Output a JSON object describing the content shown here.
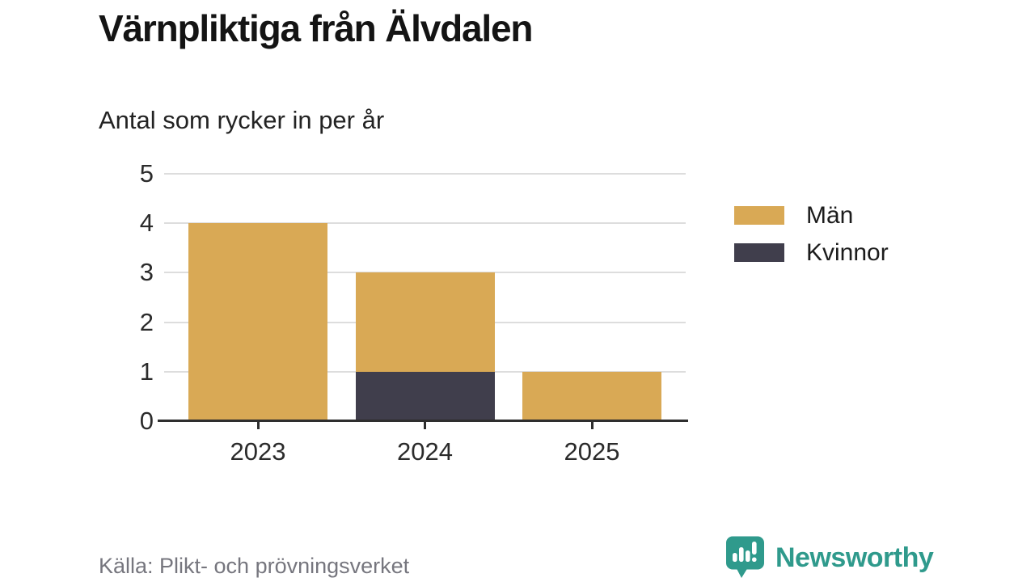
{
  "chart_data": {
    "type": "bar",
    "stacked": true,
    "title": "Värnpliktiga från Älvdalen",
    "subtitle": "Antal som rycker in per år",
    "categories": [
      "2023",
      "2024",
      "2025"
    ],
    "series": [
      {
        "name": "Män",
        "color": "#d9a955",
        "values": [
          4,
          2,
          1
        ]
      },
      {
        "name": "Kvinnor",
        "color": "#403e4c",
        "values": [
          0,
          1,
          0
        ]
      }
    ],
    "totals": [
      4,
      3,
      1
    ],
    "ylim": [
      0,
      5
    ],
    "yticks": [
      0,
      1,
      2,
      3,
      4,
      5
    ],
    "grid": true,
    "legend_position": "right",
    "colors": {
      "axis": "#2e2e2e",
      "gridline": "#dddddd",
      "tick_label": "#2b2b2b"
    }
  },
  "footer": {
    "source": "Källa: Plikt- och prövningsverket",
    "brand": "Newsworthy",
    "brand_color": "#2f9a8c"
  }
}
